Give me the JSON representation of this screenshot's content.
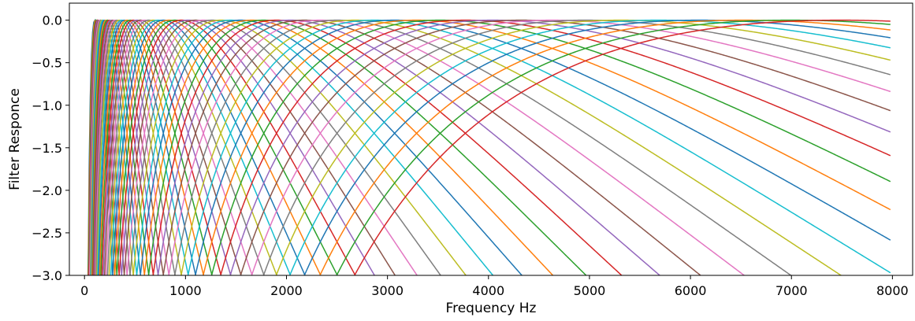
{
  "chart_data": {
    "type": "line",
    "title": "",
    "xlabel": "Frequency Hz",
    "ylabel": "Filter Responce",
    "xlim": [
      -150,
      8200
    ],
    "ylim": [
      -3.0,
      0.2
    ],
    "x_ticks": [
      0,
      1000,
      2000,
      3000,
      4000,
      5000,
      6000,
      7000,
      8000
    ],
    "y_ticks": [
      0.0,
      -0.5,
      -1.0,
      -1.5,
      -2.0,
      -2.5,
      -3.0
    ],
    "x_tick_labels": [
      "0",
      "1000",
      "2000",
      "3000",
      "4000",
      "5000",
      "6000",
      "7000",
      "8000"
    ],
    "y_tick_labels": [
      "0.0",
      "−0.5",
      "−1.0",
      "−1.5",
      "−2.0",
      "−2.5",
      "−3.0"
    ],
    "x_range": [
      0,
      7980
    ],
    "grid": false,
    "legend": "none",
    "filter_bank": {
      "filter_count": 64,
      "min_center_hz": 100,
      "max_center_hz": 7480,
      "peak_value": 0.0
    },
    "colors": [
      "#1f77b4",
      "#ff7f0e",
      "#2ca02c",
      "#d62728",
      "#9467bd",
      "#8c564b",
      "#e377c2",
      "#7f7f7f",
      "#bcbd22",
      "#17becf"
    ]
  }
}
